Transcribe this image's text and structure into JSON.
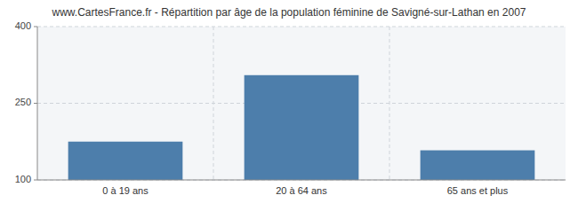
{
  "chart_data": {
    "type": "bar",
    "title": "www.CartesFrance.fr - Répartition par âge de la population féminine de Savigné-sur-Lathan en 2007",
    "categories": [
      "0 à 19 ans",
      "20 à 64 ans",
      "65 ans et plus"
    ],
    "values": [
      175,
      305,
      158
    ],
    "color": "#4d7eab",
    "ylim": [
      100,
      400
    ],
    "yticks": [
      100,
      250,
      400
    ],
    "grid": true
  }
}
